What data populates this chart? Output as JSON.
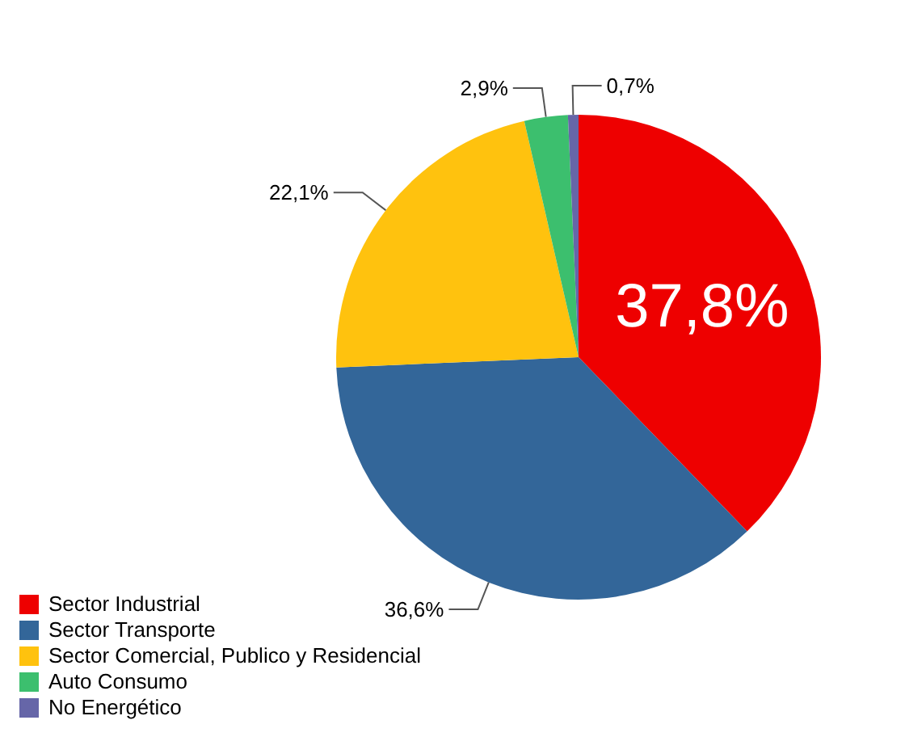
{
  "chart_data": {
    "type": "pie",
    "categories": [
      "Sector Industrial",
      "Sector Transporte",
      "Sector Comercial, Publico y Residencial",
      "Auto Consumo",
      "No Energético"
    ],
    "values": [
      37.8,
      36.6,
      22.1,
      2.9,
      0.7
    ],
    "colors": [
      "#ee0000",
      "#336699",
      "#ffc20e",
      "#3cbf6e",
      "#6666a8"
    ],
    "value_labels": [
      "37,8%",
      "36,6%",
      "22,1%",
      "2,9%",
      "0,7%"
    ],
    "legend": "bottom left"
  }
}
